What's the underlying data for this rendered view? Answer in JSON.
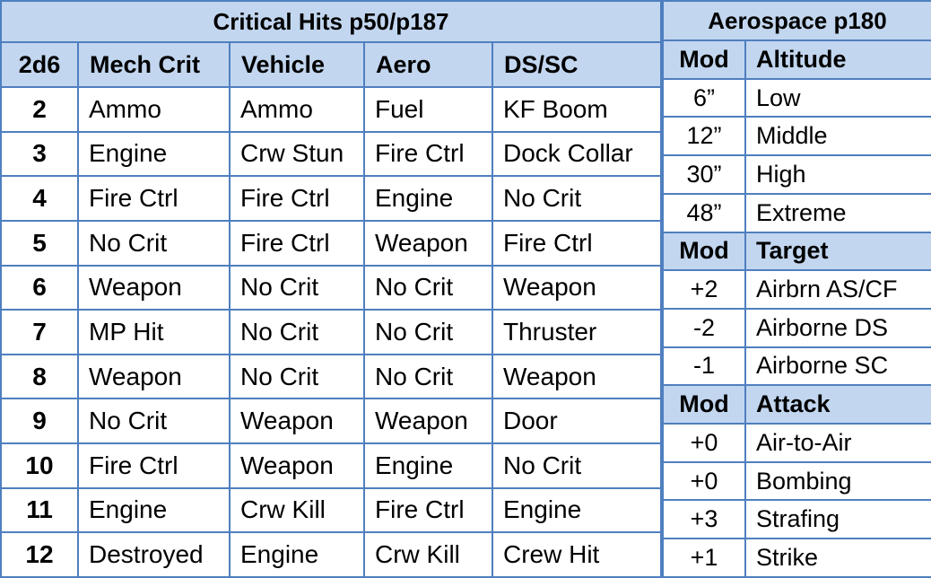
{
  "critical": {
    "title": "Critical Hits p50/p187",
    "headers": [
      "2d6",
      "Mech Crit",
      "Vehicle",
      "Aero",
      "DS/SC"
    ],
    "rows": [
      [
        "2",
        "Ammo",
        "Ammo",
        "Fuel",
        "KF Boom"
      ],
      [
        "3",
        "Engine",
        "Crw Stun",
        "Fire Ctrl",
        "Dock Collar"
      ],
      [
        "4",
        "Fire Ctrl",
        "Fire Ctrl",
        "Engine",
        "No Crit"
      ],
      [
        "5",
        "No Crit",
        "Fire Ctrl",
        "Weapon",
        "Fire Ctrl"
      ],
      [
        "6",
        "Weapon",
        "No Crit",
        "No Crit",
        "Weapon"
      ],
      [
        "7",
        "MP Hit",
        "No Crit",
        "No Crit",
        "Thruster"
      ],
      [
        "8",
        "Weapon",
        "No Crit",
        "No Crit",
        "Weapon"
      ],
      [
        "9",
        "No Crit",
        "Weapon",
        "Weapon",
        "Door"
      ],
      [
        "10",
        "Fire Ctrl",
        "Weapon",
        "Engine",
        "No Crit"
      ],
      [
        "11",
        "Engine",
        "Crw Kill",
        "Fire Ctrl",
        "Engine"
      ],
      [
        "12",
        "Destroyed",
        "Engine",
        "Crw Kill",
        "Crew Hit"
      ]
    ]
  },
  "aerospace": {
    "title": "Aerospace p180",
    "sections": [
      {
        "headers": [
          "Mod",
          "Altitude"
        ],
        "rows": [
          [
            "6”",
            "Low"
          ],
          [
            "12”",
            "Middle"
          ],
          [
            "30”",
            "High"
          ],
          [
            "48”",
            "Extreme"
          ]
        ]
      },
      {
        "headers": [
          "Mod",
          "Target"
        ],
        "rows": [
          [
            "+2",
            "Airbrn AS/CF"
          ],
          [
            "-2",
            "Airborne DS"
          ],
          [
            "-1",
            "Airborne SC"
          ]
        ]
      },
      {
        "headers": [
          "Mod",
          "Attack"
        ],
        "rows": [
          [
            "+0",
            "Air-to-Air"
          ],
          [
            "+0",
            "Bombing"
          ],
          [
            "+3",
            "Strafing"
          ],
          [
            "+1",
            "Strike"
          ]
        ]
      }
    ]
  },
  "colors": {
    "header_fill": "#c2d6ef",
    "border": "#4f7fbf"
  }
}
